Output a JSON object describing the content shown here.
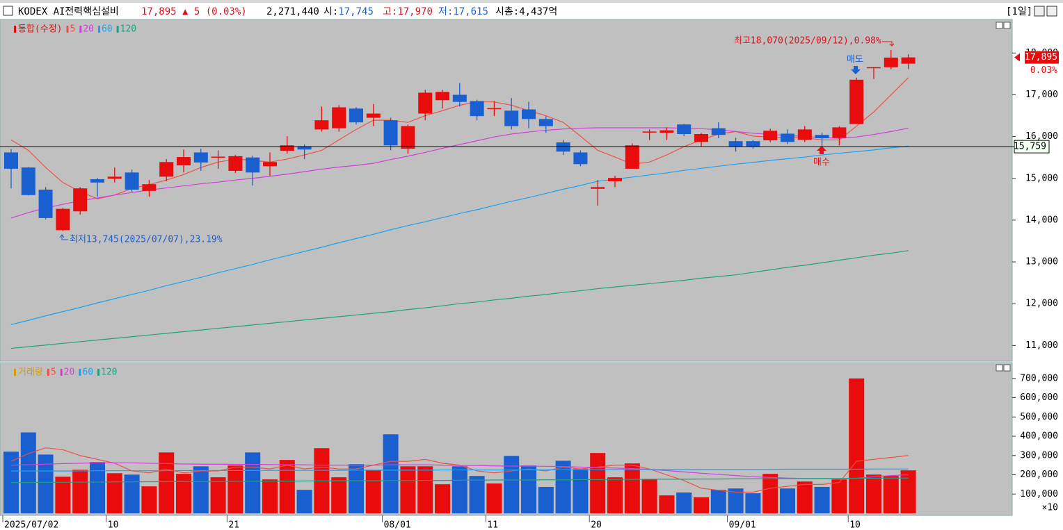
{
  "header": {
    "title": "KODEX AI전력핵심설비",
    "price": "17,895",
    "change": "▲ 5 (0.03%)",
    "volume": "2,271,440",
    "open_label": "시:",
    "open": "17,745",
    "high_label": "고:",
    "high": "17,970",
    "low_label": "저:",
    "low": "17,615",
    "market_cap": "시총:4,437억",
    "period": "[1일]"
  },
  "chart_data": [
    {
      "type": "candlestick",
      "title": "통합(수정)",
      "categories": [
        "2025/07/02",
        null,
        null,
        null,
        null,
        null,
        "10",
        null,
        null,
        null,
        null,
        null,
        null,
        "21",
        null,
        null,
        null,
        null,
        null,
        null,
        null,
        null,
        "08/01",
        null,
        null,
        null,
        null,
        null,
        "11",
        null,
        null,
        null,
        null,
        null,
        "20",
        null,
        null,
        null,
        null,
        null,
        null,
        null,
        "09/01",
        null,
        null,
        null,
        null,
        null,
        null,
        "10",
        null,
        null,
        null
      ],
      "open": [
        15620,
        15260,
        14730,
        13760,
        14210,
        14980,
        14990,
        15140,
        14700,
        15040,
        15310,
        15620,
        15500,
        15180,
        15500,
        15290,
        15660,
        15770,
        16170,
        16200,
        16670,
        16450,
        16390,
        15710,
        16550,
        16870,
        17000,
        16850,
        16660,
        16620,
        16650,
        16420,
        15860,
        15620,
        14750,
        14930,
        15230,
        16110,
        16090,
        16290,
        15870,
        16200,
        15890,
        15890,
        15910,
        16070,
        15920,
        16040,
        15970,
        16300,
        17650,
        17660,
        17745
      ],
      "high": [
        15700,
        15270,
        14790,
        14290,
        14790,
        15010,
        15260,
        15210,
        14960,
        15460,
        15690,
        15710,
        15670,
        15560,
        15540,
        15620,
        16010,
        15810,
        16720,
        16750,
        16700,
        16780,
        16450,
        16290,
        17120,
        17120,
        17280,
        16880,
        16850,
        16920,
        16830,
        16490,
        15920,
        15670,
        14960,
        15060,
        15840,
        16170,
        16220,
        16300,
        16090,
        16340,
        15970,
        15920,
        16190,
        16170,
        16250,
        16090,
        16250,
        17410,
        17660,
        18070,
        17970
      ],
      "low": [
        14760,
        14590,
        14020,
        13745,
        14130,
        14560,
        14900,
        14680,
        14560,
        14930,
        15140,
        15180,
        15230,
        15130,
        14830,
        15060,
        15590,
        15460,
        16120,
        16120,
        16290,
        16250,
        15670,
        15590,
        16390,
        16670,
        16720,
        16390,
        16490,
        16170,
        16200,
        16090,
        15560,
        15290,
        14350,
        14790,
        15230,
        15920,
        15920,
        16010,
        15760,
        15960,
        15640,
        15710,
        15870,
        15820,
        15870,
        15760,
        15790,
        16300,
        17380,
        17610,
        17615
      ],
      "close": [
        15230,
        14600,
        14050,
        14270,
        14760,
        14900,
        15040,
        14730,
        14860,
        15390,
        15510,
        15380,
        15520,
        15530,
        15140,
        15390,
        15790,
        15690,
        16390,
        16700,
        16340,
        16550,
        15790,
        16250,
        17050,
        17070,
        16830,
        16490,
        16680,
        16250,
        16420,
        16250,
        15640,
        15340,
        14790,
        15010,
        15790,
        16120,
        16150,
        16060,
        16060,
        16040,
        15760,
        15760,
        16140,
        15870,
        16170,
        15960,
        16220,
        17360,
        17660,
        17890,
        17895
      ],
      "up_color": "#e80c0c",
      "down_color": "#1a5fd0",
      "series": [
        {
          "name": "5",
          "color": "#ee5044",
          "values": [
            15920,
            15670,
            15260,
            14900,
            14680,
            14510,
            14600,
            14760,
            14850,
            14960,
            15090,
            15260,
            15390,
            15460,
            15430,
            15390,
            15460,
            15560,
            15670,
            15920,
            16170,
            16390,
            16390,
            16340,
            16500,
            16620,
            16750,
            16830,
            16830,
            16750,
            16620,
            16500,
            16340,
            16010,
            15670,
            15510,
            15340,
            15390,
            15560,
            15760,
            15920,
            16060,
            16120,
            16010,
            15990,
            15970,
            15970,
            15920,
            15920,
            16250,
            16590,
            17000,
            17410
          ]
        },
        {
          "name": "20",
          "color": "#d040d8",
          "values": [
            14050,
            14180,
            14290,
            14380,
            14460,
            14530,
            14600,
            14660,
            14720,
            14770,
            14820,
            14870,
            14910,
            14960,
            15000,
            15050,
            15100,
            15160,
            15220,
            15270,
            15310,
            15360,
            15450,
            15530,
            15620,
            15720,
            15810,
            15900,
            15990,
            16060,
            16110,
            16150,
            16180,
            16200,
            16210,
            16210,
            16210,
            16210,
            16210,
            16200,
            16190,
            16160,
            16120,
            16080,
            16050,
            16030,
            16000,
            15980,
            15960,
            15990,
            16050,
            16120,
            16200
          ]
        },
        {
          "name": "60",
          "color": "#1ea0f0",
          "values": [
            11500,
            11600,
            11710,
            11810,
            11910,
            12020,
            12120,
            12220,
            12320,
            12430,
            12530,
            12630,
            12740,
            12840,
            12940,
            13050,
            13150,
            13250,
            13350,
            13460,
            13560,
            13660,
            13770,
            13870,
            13960,
            14060,
            14160,
            14250,
            14350,
            14450,
            14540,
            14640,
            14740,
            14830,
            14930,
            14980,
            15030,
            15080,
            15130,
            15190,
            15240,
            15290,
            15340,
            15380,
            15430,
            15470,
            15510,
            15560,
            15600,
            15640,
            15680,
            15730,
            15770
          ]
        },
        {
          "name": "120",
          "color": "#20a080",
          "values": [
            10930,
            10970,
            11010,
            11050,
            11090,
            11130,
            11170,
            11210,
            11250,
            11290,
            11330,
            11370,
            11410,
            11450,
            11490,
            11530,
            11570,
            11610,
            11650,
            11690,
            11730,
            11770,
            11810,
            11860,
            11900,
            11950,
            12000,
            12040,
            12090,
            12130,
            12180,
            12220,
            12270,
            12310,
            12360,
            12400,
            12440,
            12480,
            12520,
            12560,
            12610,
            12650,
            12690,
            12750,
            12810,
            12870,
            12920,
            12980,
            13040,
            13100,
            13160,
            13210,
            13270
          ]
        }
      ],
      "ylim": [
        10640,
        18770
      ],
      "yticks": [
        {
          "value": 11000,
          "label": "11,000"
        },
        {
          "value": 12000,
          "label": "12,000"
        },
        {
          "value": 13000,
          "label": "13,000"
        },
        {
          "value": 14000,
          "label": "14,000"
        },
        {
          "value": 15000,
          "label": "15,000"
        },
        {
          "value": 16000,
          "label": "16,000"
        },
        {
          "value": 17000,
          "label": "17,000"
        },
        {
          "value": 18000,
          "label": "18,000"
        }
      ],
      "last_label": {
        "value": 17895,
        "label": "17,895"
      },
      "change_label": "0.03%",
      "reference_line": {
        "value": 15759,
        "label": "15,759"
      },
      "annotations": {
        "high": "최고18,070(2025/09/12),0.98%",
        "low": "최저13,745(2025/07/07),23.19%",
        "sell": "매도",
        "buy": "매수"
      }
    },
    {
      "type": "bar",
      "title": "거래량",
      "values": [
        320000,
        420000,
        305000,
        190000,
        226000,
        266000,
        208000,
        201000,
        140000,
        316000,
        205000,
        244000,
        187000,
        248000,
        316000,
        176000,
        277000,
        122000,
        338000,
        187000,
        255000,
        226000,
        410000,
        244000,
        244000,
        151000,
        244000,
        194000,
        155000,
        298000,
        248000,
        137000,
        273000,
        230000,
        313000,
        187000,
        259000,
        176000,
        93000,
        108000,
        83000,
        122000,
        129000,
        104000,
        205000,
        129000,
        165000,
        137000,
        176000,
        700000,
        201000,
        194000,
        223000
      ],
      "series": [
        {
          "name": "5",
          "color": "#ee5044",
          "values": [
            270000,
            310000,
            340000,
            330000,
            300000,
            280000,
            260000,
            220000,
            210000,
            230000,
            210000,
            220000,
            220000,
            240000,
            240000,
            230000,
            250000,
            230000,
            240000,
            230000,
            230000,
            250000,
            270000,
            270000,
            280000,
            260000,
            250000,
            220000,
            210000,
            220000,
            230000,
            220000,
            240000,
            230000,
            240000,
            250000,
            250000,
            230000,
            200000,
            170000,
            130000,
            120000,
            110000,
            110000,
            130000,
            140000,
            150000,
            150000,
            160000,
            270000,
            280000,
            290000,
            300000
          ]
        },
        {
          "name": "20",
          "color": "#d040d8",
          "values": [
            250000,
            252000,
            255000,
            258000,
            260000,
            262000,
            262000,
            262000,
            260000,
            258000,
            256000,
            255000,
            255000,
            254000,
            254000,
            253000,
            252000,
            252000,
            250000,
            250000,
            250000,
            250000,
            252000,
            252000,
            252000,
            250000,
            248000,
            248000,
            246000,
            245000,
            245000,
            244000,
            243000,
            240000,
            238000,
            235000,
            232000,
            228000,
            222000,
            215000,
            208000,
            202000,
            196000,
            190000,
            186000,
            183000,
            181000,
            180000,
            180000,
            182000,
            190000,
            196000,
            200000
          ]
        },
        {
          "name": "60",
          "color": "#1ea0f0",
          "values": [
            220000,
            220000,
            220000,
            220000,
            220000,
            221000,
            221000,
            221000,
            221000,
            221000,
            222000,
            222000,
            222000,
            222000,
            222000,
            223000,
            223000,
            223000,
            223000,
            223000,
            224000,
            224000,
            224000,
            224000,
            224000,
            225000,
            225000,
            225000,
            225000,
            225000,
            226000,
            226000,
            226000,
            226000,
            226000,
            227000,
            227000,
            227000,
            227000,
            227000,
            228000,
            228000,
            228000,
            228000,
            228000,
            229000,
            229000,
            229000,
            229000,
            229000,
            230000,
            230000,
            230000
          ]
        },
        {
          "name": "120",
          "color": "#20a080",
          "values": [
            160000,
            160000,
            161000,
            161000,
            162000,
            162000,
            163000,
            163000,
            164000,
            164000,
            165000,
            165000,
            165000,
            166000,
            166000,
            167000,
            167000,
            168000,
            168000,
            169000,
            169000,
            169000,
            170000,
            170000,
            171000,
            171000,
            172000,
            172000,
            173000,
            173000,
            173000,
            174000,
            174000,
            175000,
            175000,
            176000,
            176000,
            177000,
            177000,
            177000,
            178000,
            178000,
            179000,
            179000,
            180000,
            180000,
            181000,
            181000,
            181000,
            182000,
            182000,
            183000,
            183000
          ]
        }
      ],
      "ylim": [
        0,
        775000
      ],
      "yticks": [
        {
          "value": 100000,
          "label": "100,000"
        },
        {
          "value": 200000,
          "label": "200,000"
        },
        {
          "value": 300000,
          "label": "300,000"
        },
        {
          "value": 400000,
          "label": "400,000"
        },
        {
          "value": 500000,
          "label": "500,000"
        },
        {
          "value": 600000,
          "label": "600,000"
        },
        {
          "value": 700000,
          "label": "700,000"
        }
      ],
      "scale_label": "×10"
    }
  ]
}
